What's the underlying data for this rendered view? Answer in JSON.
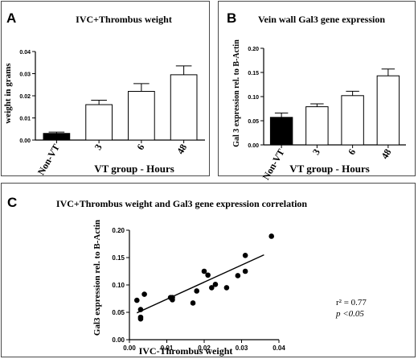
{
  "panels": {
    "a": {
      "letter": "A"
    },
    "b": {
      "letter": "B"
    },
    "c": {
      "letter": "C"
    }
  },
  "chart_data": [
    {
      "type": "bar",
      "title": "IVC+Thrombus weight",
      "xlabel": "VT group - Hours",
      "ylabel": "weight in grams",
      "categories": [
        "Non-VT",
        "3",
        "6",
        "48"
      ],
      "values": [
        0.003,
        0.016,
        0.022,
        0.0295
      ],
      "errors": [
        0.0006,
        0.002,
        0.0035,
        0.004
      ],
      "fills": [
        "#000000",
        "#ffffff",
        "#ffffff",
        "#ffffff"
      ],
      "ylim": [
        0,
        0.04
      ],
      "yticks": [
        "0.00",
        "0.01",
        "0.02",
        "0.03",
        "0.04"
      ]
    },
    {
      "type": "bar",
      "title": "Vein wall Gal3 gene expression",
      "xlabel": "VT group - Hours",
      "ylabel": "Gal 3 expression rel. to B-Actin",
      "categories": [
        "Non-VT",
        "3",
        "6",
        "48"
      ],
      "values": [
        0.057,
        0.079,
        0.102,
        0.143
      ],
      "errors": [
        0.009,
        0.006,
        0.009,
        0.014
      ],
      "fills": [
        "#000000",
        "#ffffff",
        "#ffffff",
        "#ffffff"
      ],
      "ylim": [
        0,
        0.2
      ],
      "yticks": [
        "0.00",
        "0.05",
        "0.10",
        "0.15",
        "0.20"
      ]
    },
    {
      "type": "scatter",
      "title": "IVC+Thrombus weight and Gal3 gene expression correlation",
      "xlabel": "IVC-Thrombus weight",
      "ylabel": "Gal3 expression rel. to B-Actin",
      "xlim": [
        0,
        0.04
      ],
      "ylim": [
        0,
        0.2
      ],
      "xticks": [
        "0.00",
        "0.01",
        "0.02",
        "0.03",
        "0.04"
      ],
      "yticks": [
        "0.00",
        "0.05",
        "0.10",
        "0.15",
        "0.20"
      ],
      "points": [
        [
          0.002,
          0.072
        ],
        [
          0.003,
          0.055
        ],
        [
          0.003,
          0.041
        ],
        [
          0.003,
          0.038
        ],
        [
          0.004,
          0.083
        ],
        [
          0.011,
          0.077
        ],
        [
          0.0115,
          0.077
        ],
        [
          0.0115,
          0.073
        ],
        [
          0.017,
          0.067
        ],
        [
          0.018,
          0.089
        ],
        [
          0.02,
          0.125
        ],
        [
          0.021,
          0.118
        ],
        [
          0.022,
          0.095
        ],
        [
          0.023,
          0.101
        ],
        [
          0.026,
          0.095
        ],
        [
          0.029,
          0.117
        ],
        [
          0.031,
          0.125
        ],
        [
          0.031,
          0.154
        ],
        [
          0.038,
          0.189
        ]
      ],
      "fit": {
        "x": [
          0.002,
          0.036
        ],
        "y": [
          0.049,
          0.155
        ]
      },
      "annotation": {
        "r2": "r² = 0.77",
        "p": "p <0.05"
      }
    }
  ]
}
